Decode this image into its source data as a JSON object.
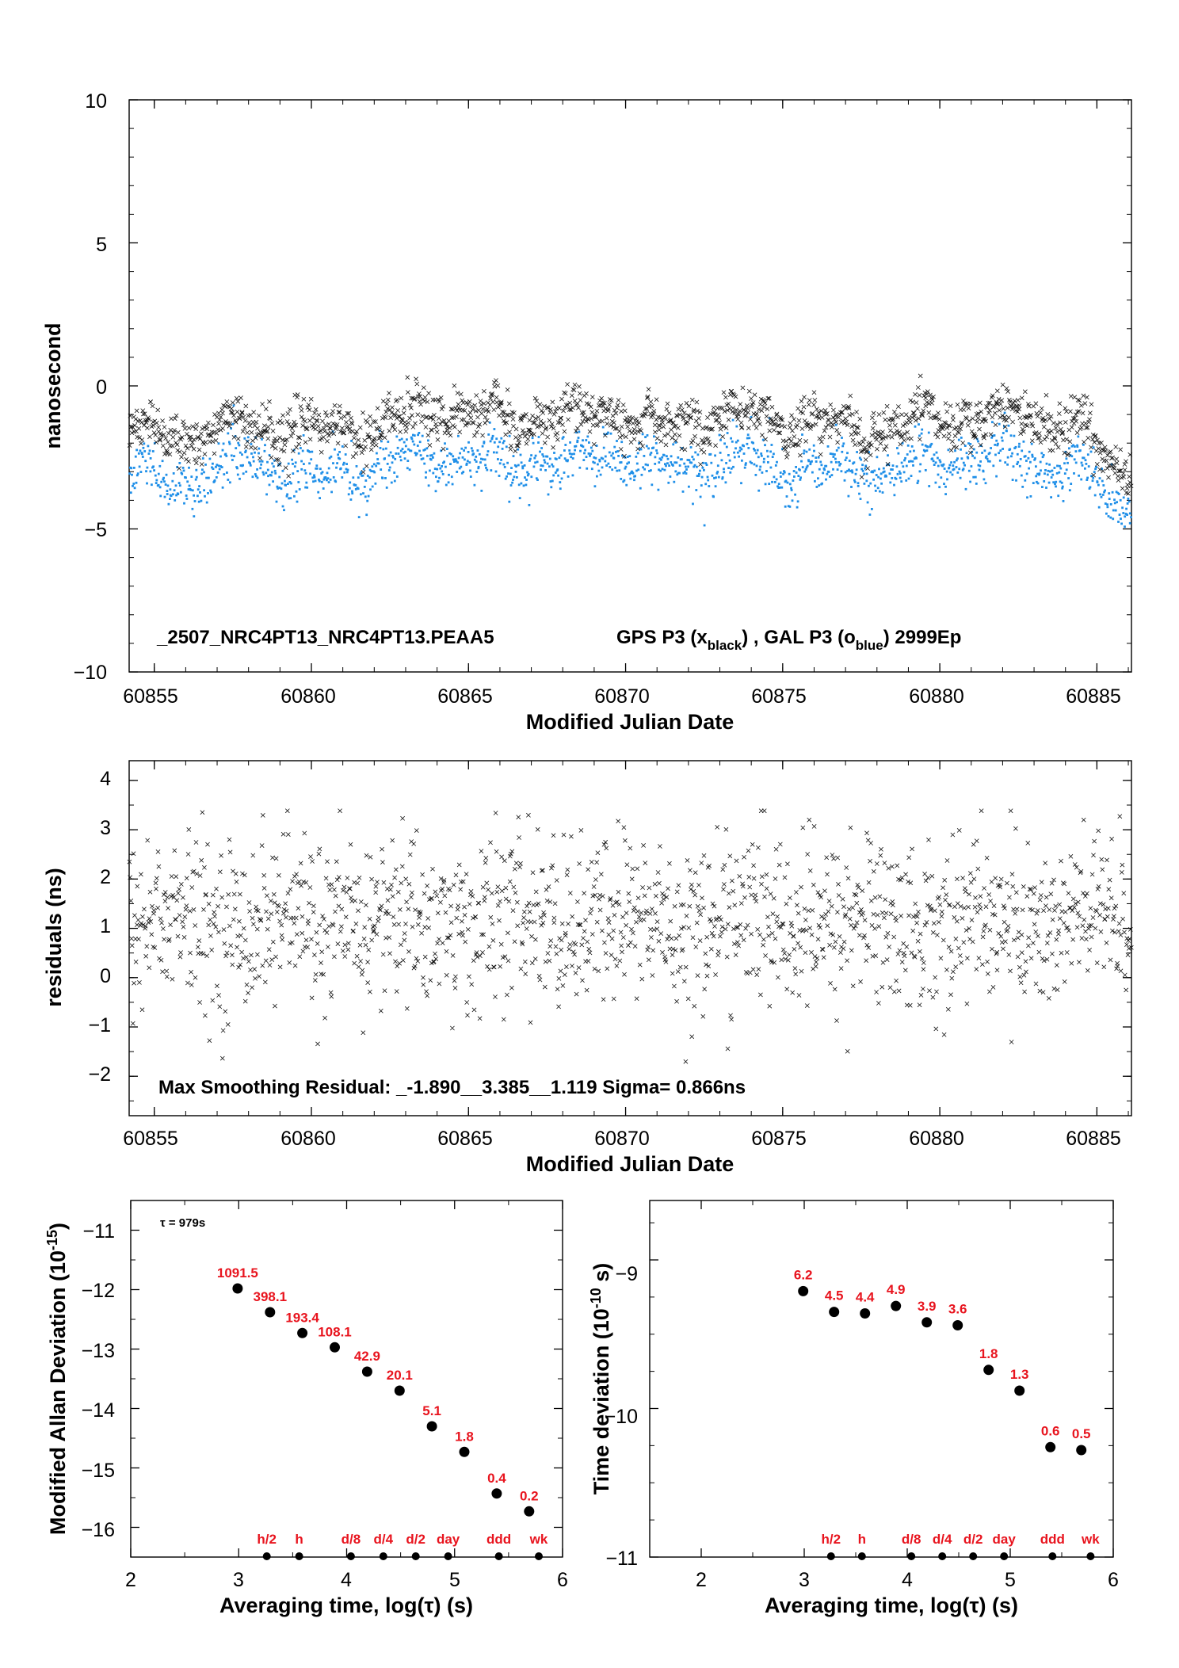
{
  "colors": {
    "black_series": "#111111",
    "blue_series": "#1f8fe8",
    "label_red": "#e8141e"
  },
  "chart_data": [
    {
      "type": "scatter",
      "title": "_2507_NRC4PT13_NRC4PT13.PEAA5",
      "legend_parts": [
        "GPS P3 (x",
        "black",
        ") ,  GAL P3 (o",
        "blue",
        ")  2999Ep"
      ],
      "xlabel": "Modified Julian Date",
      "ylabel": "nanosecond",
      "xlim": [
        60854.2,
        60886.1
      ],
      "ylim": [
        -10,
        10
      ],
      "xticks": [
        "60855",
        "60860",
        "60865",
        "60870",
        "60875",
        "60880",
        "60885"
      ],
      "yticks": [
        "10",
        "5",
        "0",
        "−5",
        "−10"
      ],
      "series": [
        {
          "name": "GPS P3",
          "marker": "x",
          "color": "#111111",
          "n_points": 2999,
          "trend": {
            "x": [
              60854.2,
              60856,
              60858,
              60860,
              60862,
              60864,
              60866,
              60868,
              60869.5,
              60871,
              60873,
              60875,
              60877,
              60879,
              60881,
              60883,
              60884.7,
              60885.3,
              60886.1
            ],
            "y": [
              -1.6,
              -1.8,
              -1.2,
              -1.6,
              -1.4,
              -0.9,
              -1.1,
              -1.2,
              -0.8,
              -1.6,
              -1.0,
              -1.2,
              -1.5,
              -1.4,
              -1.0,
              -1.1,
              -1.5,
              -2.6,
              -3.0
            ]
          }
        },
        {
          "name": "GAL P3",
          "marker": "o",
          "color": "#1f8fe8",
          "n_points": 2999,
          "trend": {
            "x": [
              60854.2,
              60856,
              60858,
              60860,
              60862,
              60864,
              60866,
              60868,
              60869.5,
              60871,
              60873,
              60875,
              60877,
              60879,
              60881,
              60883,
              60884.7,
              60885.3,
              60886.1
            ],
            "y": [
              -3.0,
              -3.4,
              -2.6,
              -3.2,
              -2.9,
              -2.4,
              -2.6,
              -2.8,
              -2.2,
              -3.0,
              -2.6,
              -2.8,
              -3.1,
              -2.9,
              -2.5,
              -2.6,
              -2.9,
              -4.0,
              -4.1
            ]
          }
        }
      ]
    },
    {
      "type": "scatter",
      "xlabel": "Modified Julian Date",
      "ylabel": "residuals (ns)",
      "xlim": [
        60854.2,
        60886.1
      ],
      "ylim": [
        -2.8,
        4.4
      ],
      "xticks": [
        "60855",
        "60860",
        "60865",
        "60870",
        "60875",
        "60880",
        "60885"
      ],
      "yticks": [
        "4",
        "3",
        "2",
        "1",
        "0",
        "−1",
        "−2"
      ],
      "annotation": "Max Smoothing Residual: _-1.890__3.385__1.119  Sigma= 0.866ns",
      "series": [
        {
          "marker": "x",
          "color": "#111111",
          "n_points": 2999,
          "center": 1.119,
          "sigma": 0.866,
          "min": -1.89,
          "max": 3.385
        }
      ]
    },
    {
      "type": "scatter",
      "xlabel": "Averaging time, log(τ) (s)",
      "ylabel_main": "Modified Allan Deviation (10",
      "ylabel_sup": "-15",
      "ylabel_end": ")",
      "xlim": [
        2,
        6
      ],
      "ylim": [
        -16.5,
        -10.5
      ],
      "xticks": [
        "2",
        "3",
        "4",
        "5",
        "6"
      ],
      "yticks": [
        "−11",
        "−12",
        "−13",
        "−14",
        "−15",
        "−16"
      ],
      "tau_note": "τ = 979s",
      "points": [
        {
          "x": 2.99,
          "y": -11.98,
          "label": "1091.5"
        },
        {
          "x": 3.29,
          "y": -12.38,
          "label": "398.1"
        },
        {
          "x": 3.59,
          "y": -12.73,
          "label": "193.4"
        },
        {
          "x": 3.89,
          "y": -12.97,
          "label": "108.1"
        },
        {
          "x": 4.19,
          "y": -13.38,
          "label": "42.9"
        },
        {
          "x": 4.49,
          "y": -13.7,
          "label": "20.1"
        },
        {
          "x": 4.79,
          "y": -14.3,
          "label": "5.1"
        },
        {
          "x": 5.09,
          "y": -14.73,
          "label": "1.8"
        },
        {
          "x": 5.39,
          "y": -15.43,
          "label": "0.4"
        },
        {
          "x": 5.69,
          "y": -15.73,
          "label": "0.2"
        }
      ],
      "time_marks": [
        {
          "x": 3.26,
          "label": "h/2"
        },
        {
          "x": 3.56,
          "label": "h"
        },
        {
          "x": 4.04,
          "label": "d/8"
        },
        {
          "x": 4.34,
          "label": "d/4"
        },
        {
          "x": 4.64,
          "label": "d/2"
        },
        {
          "x": 4.94,
          "label": "day"
        },
        {
          "x": 5.41,
          "label": "ddd"
        },
        {
          "x": 5.78,
          "label": "wk"
        }
      ]
    },
    {
      "type": "scatter",
      "xlabel": "Averaging time, log(τ) (s)",
      "ylabel_main": "Time deviation (10",
      "ylabel_sup": "-10",
      "ylabel_end": " s)",
      "xlim": [
        1.5,
        6
      ],
      "ylim": [
        -11,
        -8.6
      ],
      "xticks": [
        "2",
        "3",
        "4",
        "5",
        "6"
      ],
      "yticks": [
        "−9",
        "−10",
        "−11"
      ],
      "points": [
        {
          "x": 2.99,
          "y": -9.21,
          "label": "6.2"
        },
        {
          "x": 3.29,
          "y": -9.35,
          "label": "4.5"
        },
        {
          "x": 3.59,
          "y": -9.36,
          "label": "4.4"
        },
        {
          "x": 3.89,
          "y": -9.31,
          "label": "4.9"
        },
        {
          "x": 4.19,
          "y": -9.42,
          "label": "3.9"
        },
        {
          "x": 4.49,
          "y": -9.44,
          "label": "3.6"
        },
        {
          "x": 4.79,
          "y": -9.74,
          "label": "1.8"
        },
        {
          "x": 5.09,
          "y": -9.88,
          "label": "1.3"
        },
        {
          "x": 5.39,
          "y": -10.26,
          "label": "0.6"
        },
        {
          "x": 5.69,
          "y": -10.28,
          "label": "0.5"
        }
      ],
      "time_marks": [
        {
          "x": 3.26,
          "label": "h/2"
        },
        {
          "x": 3.56,
          "label": "h"
        },
        {
          "x": 4.04,
          "label": "d/8"
        },
        {
          "x": 4.34,
          "label": "d/4"
        },
        {
          "x": 4.64,
          "label": "d/2"
        },
        {
          "x": 4.94,
          "label": "day"
        },
        {
          "x": 5.41,
          "label": "ddd"
        },
        {
          "x": 5.78,
          "label": "wk"
        }
      ]
    }
  ]
}
